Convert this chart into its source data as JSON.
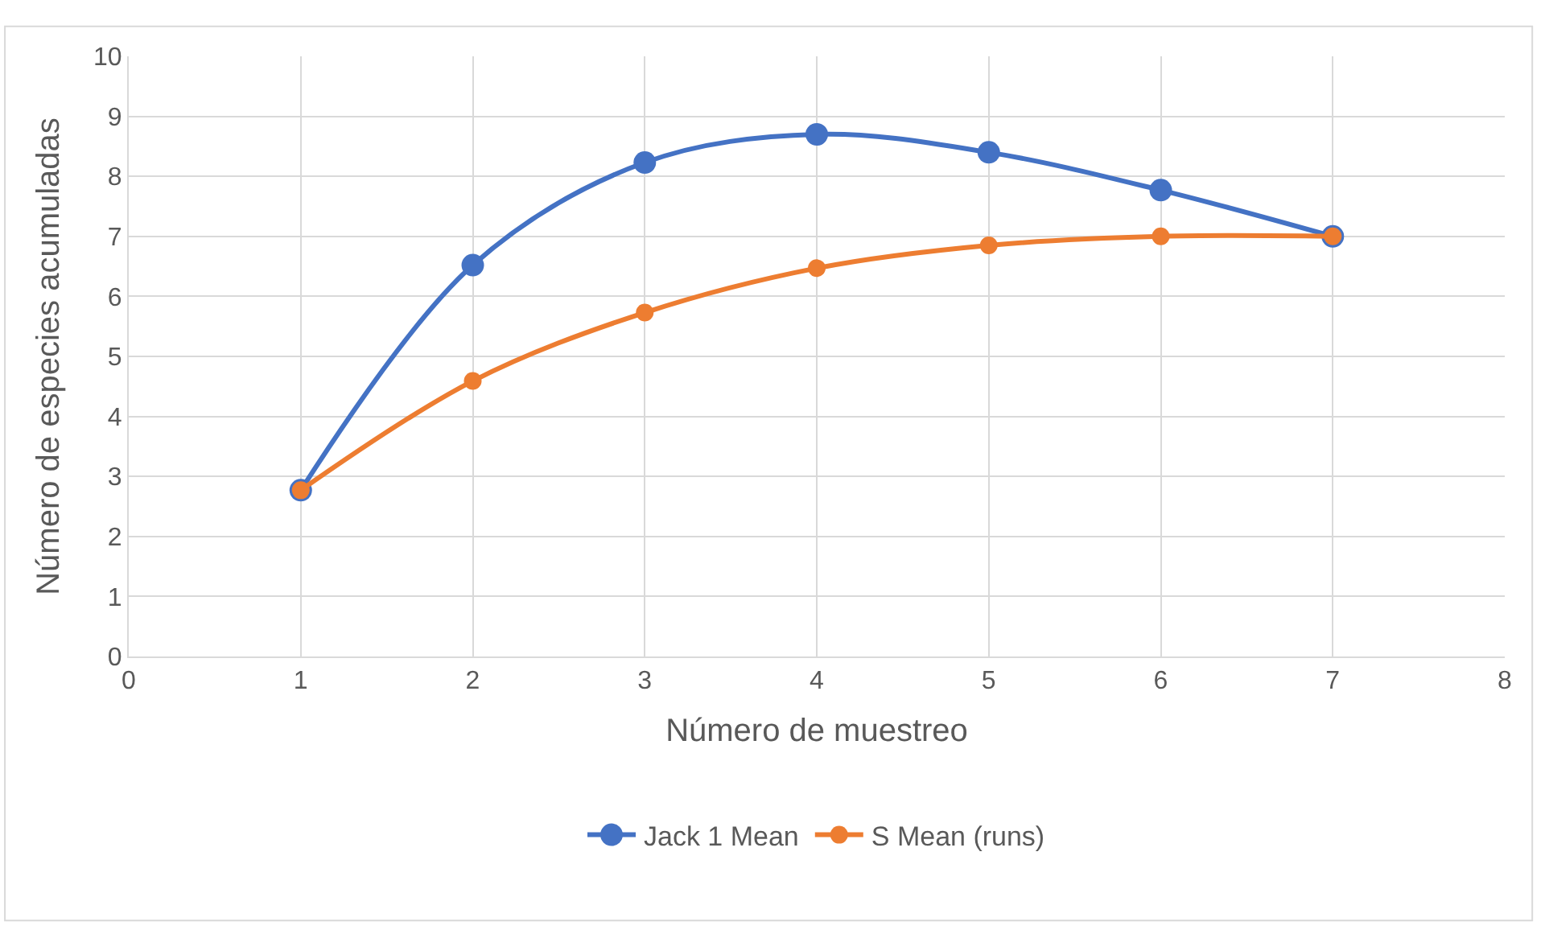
{
  "chart_data": {
    "type": "line",
    "xlabel": "Número de muestreo",
    "ylabel": "Número de especies acumuladas",
    "x": [
      1,
      2,
      3,
      4,
      5,
      6,
      7
    ],
    "series": [
      {
        "name": "Jack 1 Mean",
        "color": "#4472c4",
        "values": [
          2.77,
          6.52,
          8.23,
          8.7,
          8.4,
          7.77,
          7.0
        ]
      },
      {
        "name": "S Mean (runs)",
        "color": "#ed7d31",
        "values": [
          2.77,
          4.59,
          5.73,
          6.47,
          6.85,
          7.0,
          7.0
        ]
      }
    ],
    "xlim": [
      0,
      8
    ],
    "xticks": [
      0,
      1,
      2,
      3,
      4,
      5,
      6,
      7,
      8
    ],
    "ylim": [
      0,
      10
    ],
    "yticks": [
      0,
      1,
      2,
      3,
      4,
      5,
      6,
      7,
      8,
      9,
      10
    ],
    "grid": true,
    "legend": "bottom",
    "marker": "circle",
    "line_style": "solid"
  }
}
